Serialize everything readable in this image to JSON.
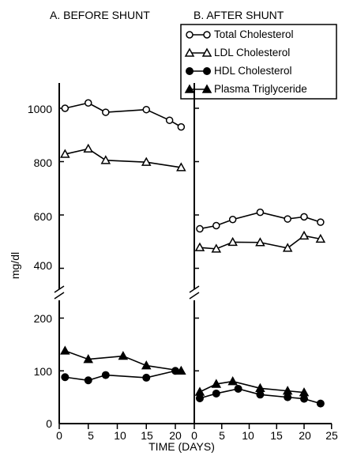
{
  "chart_data": [
    {
      "type": "line",
      "panel_title": "A. BEFORE SHUNT",
      "xlim": [
        0,
        23
      ],
      "xticks": [
        0,
        5,
        10,
        15,
        20
      ],
      "series": [
        {
          "name": "Total Cholesterol",
          "marker": "open-circle",
          "points": [
            [
              1,
              1000
            ],
            [
              5,
              1020
            ],
            [
              8,
              985
            ],
            [
              15,
              995
            ],
            [
              19,
              955
            ],
            [
              21,
              930
            ]
          ]
        },
        {
          "name": "LDL Cholesterol",
          "marker": "open-triangle",
          "points": [
            [
              1,
              828
            ],
            [
              5,
              848
            ],
            [
              8,
              805
            ],
            [
              15,
              798
            ],
            [
              21,
              778
            ]
          ]
        },
        {
          "name": "HDL Cholesterol",
          "marker": "filled-circle",
          "points": [
            [
              1,
              88
            ],
            [
              5,
              82
            ],
            [
              8,
              92
            ],
            [
              15,
              87
            ],
            [
              20,
              100
            ]
          ]
        },
        {
          "name": "Plasma Triglyceride",
          "marker": "filled-triangle",
          "points": [
            [
              1,
              138
            ],
            [
              5,
              122
            ],
            [
              11,
              128
            ],
            [
              15,
              110
            ],
            [
              21,
              100
            ]
          ]
        }
      ]
    },
    {
      "type": "line",
      "panel_title": "B. AFTER SHUNT",
      "xlim": [
        0,
        25
      ],
      "xticks": [
        0,
        5,
        10,
        15,
        20,
        25
      ],
      "series": [
        {
          "name": "Total Cholesterol",
          "marker": "open-circle",
          "points": [
            [
              1,
              548
            ],
            [
              4,
              560
            ],
            [
              7,
              583
            ],
            [
              12,
              610
            ],
            [
              17,
              585
            ],
            [
              20,
              593
            ],
            [
              23,
              573
            ]
          ]
        },
        {
          "name": "LDL Cholesterol",
          "marker": "open-triangle",
          "points": [
            [
              1,
              478
            ],
            [
              4,
              473
            ],
            [
              7,
              498
            ],
            [
              12,
              497
            ],
            [
              17,
              476
            ],
            [
              20,
              522
            ],
            [
              23,
              510
            ]
          ]
        },
        {
          "name": "HDL Cholesterol",
          "marker": "filled-circle",
          "points": [
            [
              1,
              48
            ],
            [
              4,
              57
            ],
            [
              8,
              66
            ],
            [
              12,
              55
            ],
            [
              17,
              50
            ],
            [
              20,
              47
            ],
            [
              23,
              38
            ]
          ]
        },
        {
          "name": "Plasma Triglyceride",
          "marker": "filled-triangle",
          "points": [
            [
              1,
              60
            ],
            [
              4,
              75
            ],
            [
              7,
              80
            ],
            [
              12,
              67
            ],
            [
              17,
              62
            ],
            [
              20,
              59
            ]
          ]
        }
      ]
    }
  ],
  "axes": {
    "ylabel": "mg/dl",
    "xlabel": "TIME (DAYS)",
    "yticks_upper": [
      400,
      600,
      800,
      1000
    ],
    "yticks_lower": [
      0,
      100,
      200
    ],
    "x_tick_labels": [
      "0",
      "5",
      "10",
      "15",
      "20",
      "0",
      "5",
      "10",
      "15",
      "20",
      "25"
    ]
  },
  "legend": {
    "placement": "top-right",
    "items": [
      {
        "label": "Total Cholesterol",
        "marker": "open-circle"
      },
      {
        "label": "LDL Cholesterol",
        "marker": "open-triangle"
      },
      {
        "label": "HDL Cholesterol",
        "marker": "filled-circle"
      },
      {
        "label": "Plasma Triglyceride",
        "marker": "filled-triangle"
      }
    ]
  }
}
